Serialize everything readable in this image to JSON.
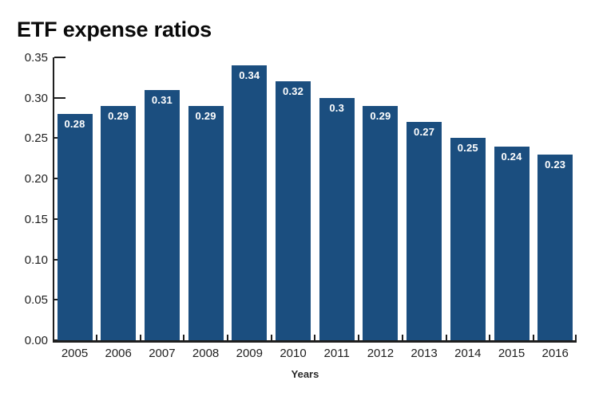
{
  "title": "ETF expense ratios",
  "colors": {
    "bar": "#1B4E7F",
    "axis": "#1f1f1f",
    "tick_label": "#1f1f1f",
    "value_label": "#ffffff",
    "background": "#ffffff"
  },
  "chart_data": {
    "type": "bar",
    "title": "ETF expense ratios",
    "xlabel": "Years",
    "ylabel": "",
    "categories": [
      "2005",
      "2006",
      "2007",
      "2008",
      "2009",
      "2010",
      "2011",
      "2012",
      "2013",
      "2014",
      "2015",
      "2016"
    ],
    "values": [
      0.28,
      0.29,
      0.31,
      0.29,
      0.34,
      0.32,
      0.3,
      0.29,
      0.27,
      0.25,
      0.24,
      0.23
    ],
    "value_labels": [
      "0.28",
      "0.29",
      "0.31",
      "0.29",
      "0.34",
      "0.32",
      "0.3",
      "0.29",
      "0.27",
      "0.25",
      "0.24",
      "0.23"
    ],
    "ylim": [
      0,
      0.35
    ],
    "ytick_labels": [
      "0.35",
      "0.30",
      "0.25",
      "0.20",
      "0.15",
      "0.10",
      "0.05",
      "0.00"
    ],
    "grid": false,
    "legend": false
  }
}
